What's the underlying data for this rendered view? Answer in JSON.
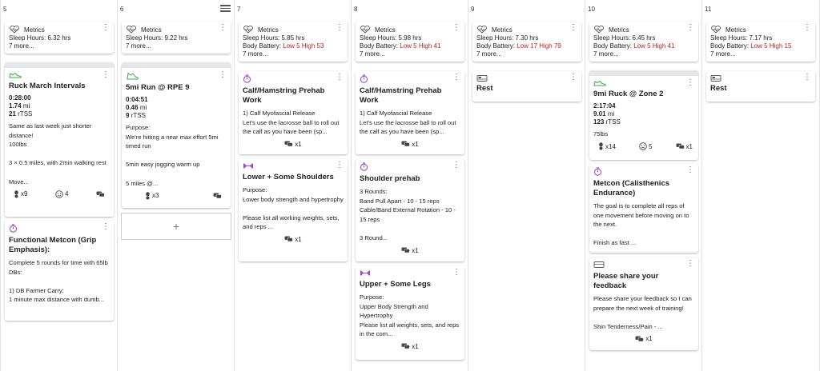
{
  "days": [
    "5",
    "6",
    "7",
    "8",
    "9",
    "10",
    "11"
  ],
  "metrics_label": "Metrics",
  "sleep_label": "Sleep Hours:",
  "battery_label": "Body Battery:",
  "more_label": "7 more...",
  "metrics": [
    {
      "sleep": "6.32 hrs"
    },
    {
      "sleep": "9.22 hrs"
    },
    {
      "sleep": "5.85 hrs",
      "battery": "Low 5 High 53"
    },
    {
      "sleep": "5.98 hrs",
      "battery": "Low 5 High 41"
    },
    {
      "sleep": "7.30 hrs",
      "battery": "Low 17 High 79"
    },
    {
      "sleep": "6.45 hrs",
      "battery": "Low 5 High 41"
    },
    {
      "sleep": "7.17 hrs",
      "battery": "Low 5 High 15"
    }
  ],
  "cards": {
    "d5_ruck": {
      "title": "Ruck March Intervals",
      "time": "0:28:00",
      "dist": "1.74",
      "dist_unit": "mi",
      "tss": "21",
      "tss_unit": "rTSS",
      "desc": "Same as last week just shorter distance!\n100lbs\n\n3 × 0.5 miles, with 2min walking rest\n\nMove...",
      "shoes": "x9",
      "feel": "4"
    },
    "d5_metcon": {
      "title": "Functional Metcon (Grip Emphasis):",
      "desc": "Complete 5 rounds for time with 65lb DBs:\n\n1) DB Farmer Carry:\n1 minute max distance with dumb..."
    },
    "d6_run": {
      "title": "5mi Run @ RPE 9",
      "time": "0:04:51",
      "dist": "0.46",
      "dist_unit": "mi",
      "tss": "9",
      "tss_unit": "rTSS",
      "desc": "Purpose:\nWe're hitting a near max effort 5mi timed run\n\n5min easy jogging warm up\n\n5 miles @...",
      "shoes": "x3"
    },
    "d7_calf": {
      "title": "Calf/Hamstring Prehab Work",
      "desc": "1) Calf Myofascial Release\nLet's use the lacrosse ball to roll out the calf as you have been (sp...",
      "comments": "x1"
    },
    "d7_lower": {
      "title": "Lower + Some Shoulders",
      "desc": "Purpose:\nLower body strength and hypertrophy\n\nPlease list all working weights, sets, and reps ...",
      "comments": "x1"
    },
    "d8_calf": {
      "title": "Calf/Hamstring Prehab Work",
      "desc": "1) Calf Myofascial Release\nLet's use the lacrosse ball to roll out the calf as you have been (sp...",
      "comments": "x1"
    },
    "d8_shoulder": {
      "title": "Shoulder prehab",
      "desc": "3 Rounds:\nBand Pull Apart - 10 - 15 reps\nCable/Band External Rotation - 10 - 15 reps\n\n3 Round...",
      "comments": "x1"
    },
    "d8_upper": {
      "title": "Upper + Some Legs",
      "desc": "Purpose:\nUpper Body Strength and Hypertrophy\nPlease list all weights, sets, and reps in the com...",
      "comments": "x1"
    },
    "d9_rest": {
      "title": "Rest"
    },
    "d10_ruck": {
      "title": "9mi Ruck @ Zone 2",
      "time": "2:17:04",
      "dist": "9.01",
      "dist_unit": "mi",
      "tss": "123",
      "tss_unit": "rTSS",
      "desc": "75lbs",
      "shoes": "x14",
      "feel": "5",
      "comments": "x1"
    },
    "d10_metcon": {
      "title": "Metcon (Calisthenics Endurance)",
      "desc": "The goal is to complete all reps of one movement before moving on to the next.\n\nFinish as fast ..."
    },
    "d10_comment": {
      "title": "Please share your feedback",
      "desc": "Please share your feedback so I can prepare the next week of training!\n\nShin Tenderness/Pain - ...",
      "comments": "x1"
    },
    "d11_rest": {
      "title": "Rest"
    }
  },
  "add_label": "+",
  "colors": {
    "accent_purple": "#9b4dca",
    "shoe_green": "#3aa845",
    "battery_red": "#b3261e"
  },
  "icons": {
    "metrics": "heartbeat-icon",
    "run": "shoe-icon",
    "timer": "stopwatch-icon",
    "strength": "dumbbell-icon",
    "rest": "bed-icon",
    "comment": "chat-icon",
    "shoe_count": "shoe-count-icon",
    "feel": "face-icon",
    "menu": "hamburger-icon"
  }
}
